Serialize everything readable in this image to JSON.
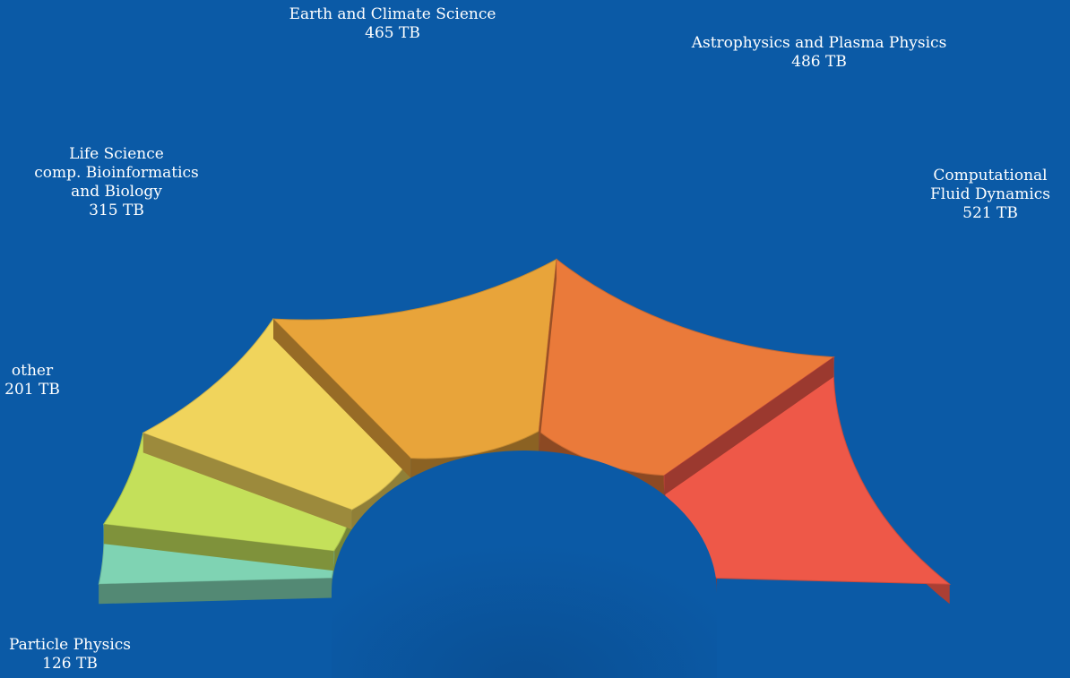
{
  "chart_data": {
    "type": "pie",
    "variant": "3d-half-donut",
    "unit": "TB",
    "slices": [
      {
        "name": "Particle Physics",
        "label_lines": [
          "Particle Physics"
        ],
        "value": 126,
        "value_label": "126 TB",
        "color": "#7fd3b3"
      },
      {
        "name": "other",
        "label_lines": [
          "other"
        ],
        "value": 201,
        "value_label": "201 TB",
        "color": "#c4e05a"
      },
      {
        "name": "Life Science comp. Bioinformatics and Biology",
        "label_lines": [
          "Life Science",
          "comp. Bioinformatics",
          "and Biology"
        ],
        "value": 315,
        "value_label": "315 TB",
        "color": "#f0d45c"
      },
      {
        "name": "Earth and Climate Science",
        "label_lines": [
          "Earth and Climate Science"
        ],
        "value": 465,
        "value_label": "465 TB",
        "color": "#e8a43a"
      },
      {
        "name": "Astrophysics and Plasma Physics",
        "label_lines": [
          "Astrophysics and Plasma Physics"
        ],
        "value": 486,
        "value_label": "486 TB",
        "color": "#ea7a3a"
      },
      {
        "name": "Computational Fluid Dynamics",
        "label_lines": [
          "Computational",
          "Fluid Dynamics"
        ],
        "value": 521,
        "value_label": "521 TB",
        "color": "#ee5848"
      }
    ],
    "colors": {
      "background": "#0b5aa6",
      "label_text": "#ffffff"
    }
  }
}
